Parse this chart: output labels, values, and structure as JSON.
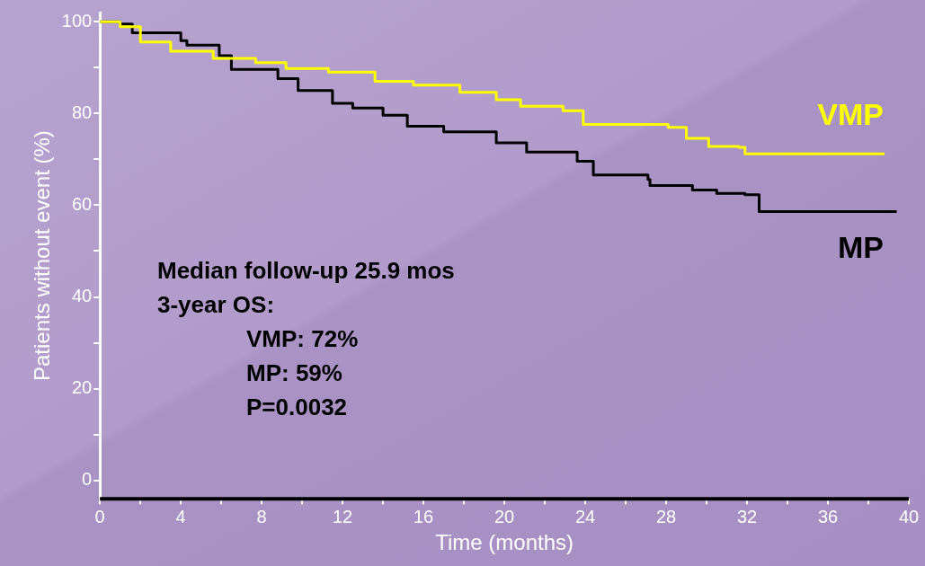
{
  "chart_data": {
    "type": "step",
    "xlabel": "Time (months)",
    "ylabel": "Patients without event (%)",
    "xlim": [
      0,
      40
    ],
    "xticks": [
      0,
      {
        "value": 2,
        "label": null
      },
      4,
      {
        "value": 6,
        "label": null
      },
      8,
      {
        "value": 10,
        "label": null
      },
      12,
      {
        "value": 14,
        "label": null
      },
      16,
      {
        "value": 18,
        "label": null
      },
      20,
      {
        "value": 22,
        "label": null
      },
      24,
      {
        "value": 26,
        "label": null
      },
      28,
      {
        "value": 30,
        "label": null
      },
      32,
      {
        "value": 34,
        "label": null
      },
      36,
      {
        "value": 38,
        "label": null
      },
      40
    ],
    "ylim": [
      -4,
      102
    ],
    "yticks": [
      0,
      {
        "value": 10,
        "label": null
      },
      20,
      {
        "value": 30,
        "label": null
      },
      40,
      {
        "value": 50,
        "label": null
      },
      60,
      {
        "value": 70,
        "label": null
      },
      80,
      {
        "value": 90,
        "label": null
      },
      100
    ],
    "grid": false,
    "legend": false,
    "marker": "none",
    "series": [
      {
        "name": "VMP",
        "color": "#ffff00",
        "x": [
          0,
          1.0,
          2.0,
          3.5,
          5.6,
          7.7,
          9.2,
          11.3,
          13.6,
          15.5,
          17.8,
          19.6,
          20.8,
          22.9,
          23.9,
          28.1,
          29.0,
          30.1,
          31.6,
          31.9,
          38.8
        ],
        "values": [
          100,
          98.9,
          95.6,
          93.6,
          92,
          91.1,
          89.8,
          89,
          87,
          86.2,
          84.6,
          83,
          81.6,
          80.6,
          77.6,
          77,
          74.6,
          72.8,
          72.6,
          71.2,
          71.2
        ]
      },
      {
        "name": "MP",
        "color": "#000000",
        "x": [
          0,
          1.0,
          1.6,
          4.0,
          4.3,
          5.9,
          6.5,
          8.8,
          9.8,
          11.5,
          12.5,
          14.0,
          15.2,
          17.0,
          19.6,
          21.1,
          23.6,
          24.4,
          27.1,
          27.2,
          29.3,
          30.5,
          31.9,
          32.6,
          39.4
        ],
        "values": [
          100,
          99.5,
          97.6,
          95.9,
          94.9,
          92.6,
          89.6,
          87.6,
          85,
          82.2,
          81.2,
          79.6,
          77.2,
          76,
          73.6,
          71.6,
          69.6,
          66.6,
          65.6,
          64.3,
          63.3,
          62.6,
          62.3,
          58.6,
          58.6
        ]
      }
    ],
    "annotations": [
      "Median follow-up 25.9 mos",
      "3-year OS:",
      "VMP: 72%",
      "MP: 59%",
      "P=0.0032"
    ]
  }
}
